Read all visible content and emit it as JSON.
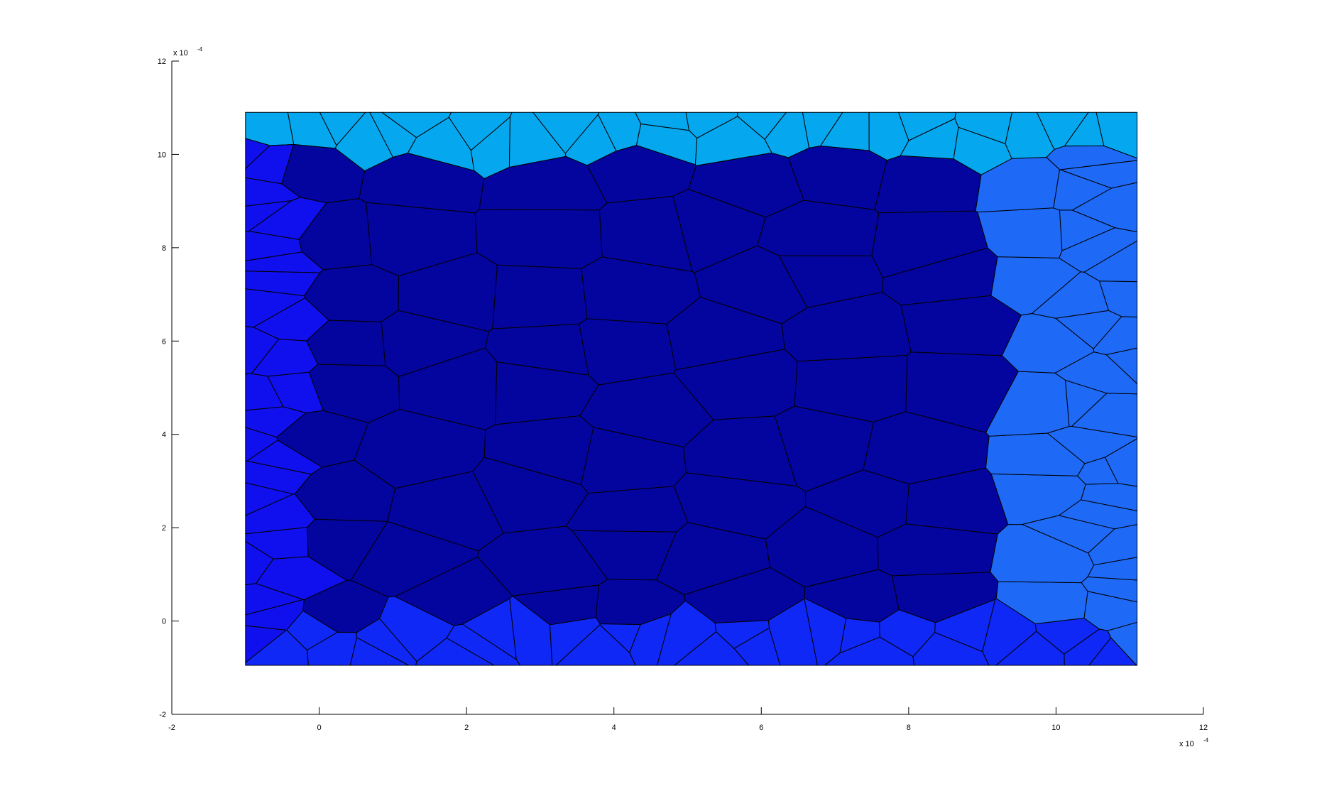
{
  "chart_data": {
    "type": "heatmap",
    "title": "",
    "xlabel": "",
    "ylabel": "",
    "xlim": [
      -2,
      12
    ],
    "ylim": [
      -2,
      12
    ],
    "x_ticks": [
      "-2",
      "0",
      "2",
      "4",
      "6",
      "8",
      "10",
      "12"
    ],
    "y_ticks": [
      "-2",
      "0",
      "2",
      "4",
      "6",
      "8",
      "10",
      "12"
    ],
    "x_multiplier": {
      "base": "x 10",
      "exp": "-4"
    },
    "y_multiplier": {
      "base": "x 10",
      "exp": "-4"
    },
    "grid": false,
    "colors": {
      "core": "#04059e",
      "core_edge": "#0a0fd2",
      "left_side": "#1010ee",
      "bottom_side": "#0f28f6",
      "right_side": "#1e6af6",
      "top_side": "#05a8ee",
      "edge_line": "#000000"
    }
  }
}
